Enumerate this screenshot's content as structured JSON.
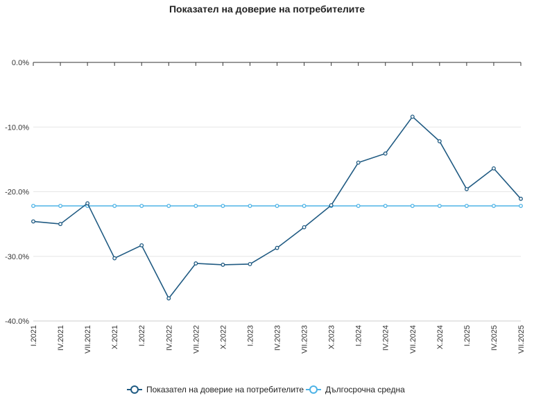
{
  "chart_data": {
    "type": "line",
    "title": "Показател на доверие на потребителите",
    "categories": [
      "I.2021",
      "IV.2021",
      "VII.2021",
      "X.2021",
      "I.2022",
      "IV.2022",
      "VII.2022",
      "X.2022",
      "I.2023",
      "IV.2023",
      "VII.2023",
      "X.2023",
      "I.2024",
      "IV.2024",
      "VII.2024",
      "X.2024",
      "I.2025",
      "IV.2025",
      "VII.2025"
    ],
    "y_tick_labels": [
      "0.0%",
      "-10.0%",
      "-20.0%",
      "-30.0%",
      "-40.0%"
    ],
    "y_ticks": [
      0,
      -10,
      -20,
      -30,
      -40
    ],
    "ylim": [
      -40,
      0
    ],
    "grid": "horizontal",
    "legend_position": "bottom",
    "series": [
      {
        "name": "Показател на доверие на потребителите",
        "color": "#1f5a82",
        "values": [
          -24.6,
          -25.0,
          -21.8,
          -30.3,
          -28.3,
          -36.5,
          -31.1,
          -31.3,
          -31.2,
          -28.7,
          -25.5,
          -22.1,
          -15.5,
          -14.1,
          -8.4,
          -12.2,
          -19.6,
          -16.4,
          -21.1
        ]
      },
      {
        "name": "Дългосрочна средна",
        "color": "#4db3e6",
        "values": [
          -22.2,
          -22.2,
          -22.2,
          -22.2,
          -22.2,
          -22.2,
          -22.2,
          -22.2,
          -22.2,
          -22.2,
          -22.2,
          -22.2,
          -22.2,
          -22.2,
          -22.2,
          -22.2,
          -22.2,
          -22.2,
          -22.2
        ]
      }
    ]
  }
}
